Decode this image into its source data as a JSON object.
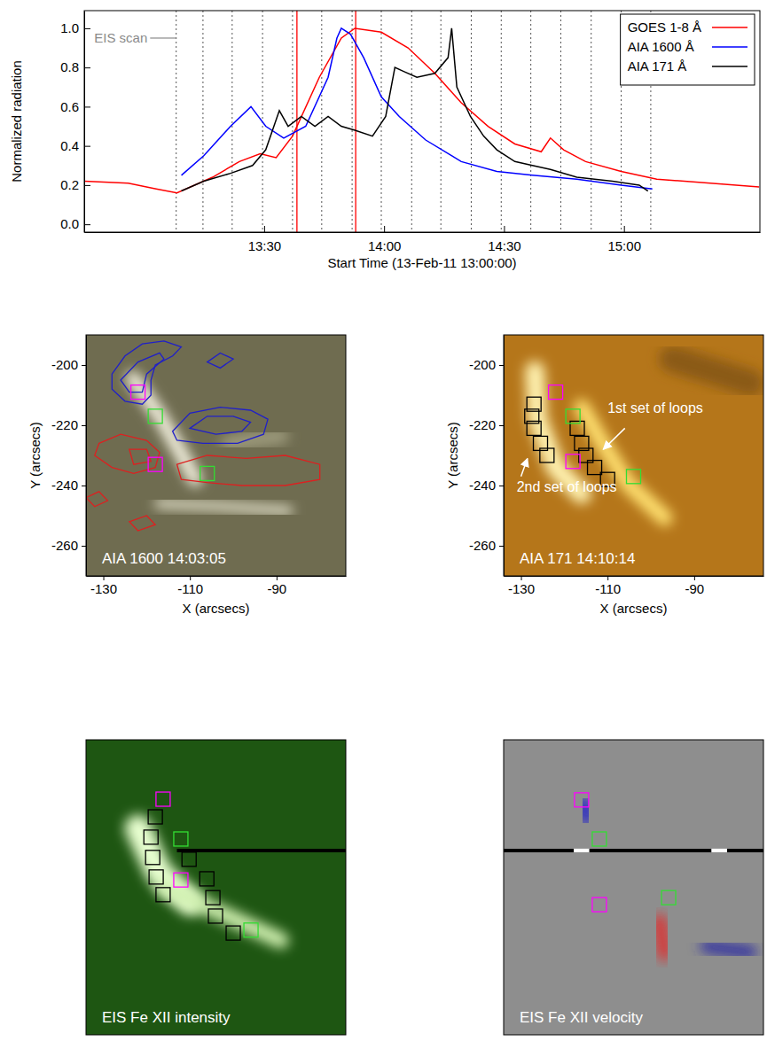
{
  "chart_data": [
    {
      "type": "line",
      "xlabel": "Start Time (13-Feb-11 13:00:00)",
      "ylabel": "Normalized radiation",
      "xlim": [
        765,
        934
      ],
      "ylim": [
        -0.04,
        1.09
      ],
      "xticks": [
        {
          "value": 810,
          "label": "13:30"
        },
        {
          "value": 840,
          "label": "14:00"
        },
        {
          "value": 870,
          "label": "14:30"
        },
        {
          "value": 900,
          "label": "15:00"
        }
      ],
      "yticks": [
        {
          "value": 0,
          "label": "0.0"
        },
        {
          "value": 0.2,
          "label": "0.2"
        },
        {
          "value": 0.4,
          "label": "0.4"
        },
        {
          "value": 0.6,
          "label": "0.6"
        },
        {
          "value": 0.8,
          "label": "0.8"
        },
        {
          "value": 1,
          "label": "1.0"
        }
      ],
      "legend": "upper right",
      "series": [
        {
          "name": "GOES 1-8 Å",
          "color": "#ff0000",
          "x": [
            765,
            776,
            783,
            788.2,
            797.1,
            803.8,
            809,
            813,
            817.1,
            823.8,
            829.3,
            832.7,
            839.3,
            846,
            852.7,
            859.3,
            866,
            872.7,
            879.3,
            881.6,
            884.9,
            890.4,
            899.3,
            908.2,
            921.6,
            933.8
          ],
          "values": [
            0.22,
            0.21,
            0.18,
            0.16,
            0.24,
            0.32,
            0.36,
            0.34,
            0.45,
            0.75,
            0.95,
            1.0,
            0.98,
            0.9,
            0.77,
            0.62,
            0.5,
            0.41,
            0.37,
            0.44,
            0.38,
            0.32,
            0.27,
            0.23,
            0.21,
            0.19
          ]
        },
        {
          "name": "AIA 1600 Å",
          "color": "#0000ff",
          "x": [
            789.3,
            794.9,
            801.6,
            806.7,
            810.4,
            814.9,
            820.4,
            826,
            828.2,
            829.3,
            831.6,
            834.9,
            839.3,
            843.8,
            850.4,
            859.3,
            868.2,
            877.1,
            888.2,
            899.3,
            907.1
          ],
          "values": [
            0.25,
            0.35,
            0.5,
            0.6,
            0.5,
            0.44,
            0.5,
            0.75,
            0.95,
            1.0,
            0.97,
            0.85,
            0.65,
            0.55,
            0.43,
            0.32,
            0.27,
            0.25,
            0.23,
            0.2,
            0.18
          ]
        },
        {
          "name": "AIA 171 Å",
          "color": "#000000",
          "x": [
            789.3,
            794.9,
            801.6,
            807.1,
            810.4,
            813.8,
            816,
            819.3,
            822.7,
            826,
            829.3,
            832.7,
            837.1,
            840.4,
            842.7,
            844.9,
            848.2,
            852.7,
            856,
            856.9,
            858.2,
            861.6,
            864.9,
            868.2,
            872.7,
            877.1,
            881.6,
            888.2,
            897.1,
            903.8,
            906
          ],
          "values": [
            0.17,
            0.22,
            0.26,
            0.3,
            0.38,
            0.58,
            0.5,
            0.55,
            0.5,
            0.55,
            0.5,
            0.48,
            0.45,
            0.55,
            0.8,
            0.78,
            0.75,
            0.77,
            0.85,
            1.0,
            0.7,
            0.55,
            0.45,
            0.38,
            0.32,
            0.3,
            0.28,
            0.24,
            0.22,
            0.2,
            0.17
          ]
        }
      ],
      "scan_times": [
        788,
        794.7,
        802,
        809.6,
        817.1,
        824.4,
        832,
        839.3,
        846.9,
        854.2,
        861.8,
        869.3,
        876.7,
        884.2,
        891.8,
        899.3,
        906.7
      ],
      "marked_times": {
        "color": "#ff0000",
        "values": [
          818.2,
          832.9
        ]
      },
      "annotations": [
        {
          "text": "EIS scan",
          "x": 767.5,
          "y": 0.95
        }
      ]
    },
    {
      "type": "image",
      "title": "AIA 1600 14:03:05",
      "xlabel": "X (arcsecs)",
      "ylabel": "Y (arcsecs)",
      "xlim": [
        -134,
        -74
      ],
      "ylim": [
        -270,
        -190
      ],
      "xticks": [
        -130,
        -110,
        -90
      ],
      "yticks": [
        -260,
        -240,
        -220,
        -200
      ],
      "contours": [
        {
          "color": "#2020c8",
          "points": [
            [
              -128,
              -203
            ],
            [
              -125,
              -197
            ],
            [
              -121,
              -193
            ],
            [
              -116,
              -192
            ],
            [
              -112,
              -194
            ],
            [
              -114,
              -197
            ],
            [
              -118,
              -200
            ],
            [
              -119,
              -205
            ],
            [
              -119,
              -210
            ],
            [
              -121,
              -213
            ],
            [
              -125,
              -212
            ],
            [
              -128,
              -208
            ]
          ]
        },
        {
          "color": "#2020c8",
          "points": [
            [
              -126,
              -205
            ],
            [
              -122,
              -199
            ],
            [
              -117,
              -196
            ],
            [
              -116,
              -198
            ],
            [
              -120,
              -203
            ],
            [
              -121,
              -209
            ],
            [
              -124,
              -209
            ]
          ]
        },
        {
          "color": "#2020c8",
          "points": [
            [
              -114,
              -222
            ],
            [
              -110,
              -216
            ],
            [
              -103,
              -214
            ],
            [
              -96,
              -215
            ],
            [
              -92,
              -218
            ],
            [
              -93,
              -223
            ],
            [
              -99,
              -226
            ],
            [
              -107,
              -226
            ],
            [
              -113,
              -225
            ]
          ]
        },
        {
          "color": "#2020c8",
          "points": [
            [
              -110,
              -221
            ],
            [
              -106,
              -217
            ],
            [
              -100,
              -217
            ],
            [
              -96,
              -219
            ],
            [
              -98,
              -222
            ],
            [
              -104,
              -223
            ]
          ]
        },
        {
          "color": "#2020c8",
          "points": [
            [
              -106,
              -199
            ],
            [
              -103,
              -196
            ],
            [
              -100,
              -198
            ],
            [
              -103,
              -201
            ]
          ]
        },
        {
          "color": "#dd2020",
          "points": [
            [
              -131,
              -226
            ],
            [
              -126,
              -223
            ],
            [
              -120,
              -225
            ],
            [
              -117,
              -229
            ],
            [
              -118,
              -234
            ],
            [
              -123,
              -236
            ],
            [
              -128,
              -234
            ],
            [
              -132,
              -230
            ]
          ]
        },
        {
          "color": "#dd2020",
          "points": [
            [
              -124,
              -228
            ],
            [
              -120,
              -228
            ],
            [
              -119,
              -232
            ],
            [
              -123,
              -233
            ]
          ]
        },
        {
          "color": "#dd2020",
          "points": [
            [
              -113,
              -233
            ],
            [
              -106,
              -230
            ],
            [
              -97,
              -231
            ],
            [
              -88,
              -230
            ],
            [
              -80,
              -233
            ],
            [
              -80,
              -238
            ],
            [
              -88,
              -240
            ],
            [
              -98,
              -240
            ],
            [
              -106,
              -239
            ],
            [
              -112,
              -238
            ]
          ]
        },
        {
          "color": "#dd2020",
          "points": [
            [
              -134,
              -244
            ],
            [
              -131,
              -242
            ],
            [
              -129,
              -245
            ],
            [
              -132,
              -247
            ]
          ]
        },
        {
          "color": "#dd2020",
          "points": [
            [
              -124,
              -252
            ],
            [
              -120,
              -250
            ],
            [
              -118,
              -253
            ],
            [
              -122,
              -255
            ]
          ]
        }
      ],
      "boxes": [
        {
          "color": "#ff00ff",
          "x": -122,
          "y": -209
        },
        {
          "color": "#33dd33",
          "x": -118,
          "y": -217
        },
        {
          "color": "#ff00ff",
          "x": -118,
          "y": -233
        },
        {
          "color": "#33dd33",
          "x": -106,
          "y": -236
        }
      ]
    },
    {
      "type": "image",
      "title": "AIA 171 14:10:14",
      "xlabel": "X (arcsecs)",
      "ylabel": "Y (arcsecs)",
      "xlim": [
        -134,
        -74
      ],
      "ylim": [
        -270,
        -190
      ],
      "xticks": [
        -130,
        -110,
        -90
      ],
      "yticks": [
        -260,
        -240,
        -220,
        -200
      ],
      "boxes": [
        {
          "color": "#000000",
          "x": -127,
          "y": -213
        },
        {
          "color": "#000000",
          "x": -127.5,
          "y": -217
        },
        {
          "color": "#000000",
          "x": -127,
          "y": -221
        },
        {
          "color": "#000000",
          "x": -125.5,
          "y": -226
        },
        {
          "color": "#000000",
          "x": -124,
          "y": -230
        },
        {
          "color": "#000000",
          "x": -117,
          "y": -221
        },
        {
          "color": "#000000",
          "x": -116,
          "y": -226
        },
        {
          "color": "#000000",
          "x": -115,
          "y": -230
        },
        {
          "color": "#000000",
          "x": -113,
          "y": -234
        },
        {
          "color": "#000000",
          "x": -110,
          "y": -238
        },
        {
          "color": "#ff00ff",
          "x": -122,
          "y": -209
        },
        {
          "color": "#33dd33",
          "x": -118,
          "y": -217
        },
        {
          "color": "#ff00ff",
          "x": -118,
          "y": -232
        },
        {
          "color": "#33dd33",
          "x": -104,
          "y": -237
        }
      ],
      "annotations": [
        {
          "text": "1st set of loops",
          "x": -110,
          "y": -216,
          "arrow": [
            [
              -106,
              -221
            ],
            [
              -111,
              -228
            ]
          ]
        },
        {
          "text": "2nd set of loops",
          "x": -131,
          "y": -242,
          "arrow": [
            [
              -130,
              -237
            ],
            [
              -128.5,
              -231
            ]
          ]
        }
      ]
    },
    {
      "type": "image",
      "title": "EIS Fe XII intensity",
      "xlim": [
        -134,
        -74
      ],
      "ylim": [
        -270,
        -190
      ],
      "tick_labels": false,
      "boxes": [
        {
          "color": "#000000",
          "x": -118,
          "y": -210.9
        },
        {
          "color": "#000000",
          "x": -119,
          "y": -216.4
        },
        {
          "color": "#000000",
          "x": -118.6,
          "y": -221.9
        },
        {
          "color": "#000000",
          "x": -117.8,
          "y": -227.2
        },
        {
          "color": "#000000",
          "x": -116.2,
          "y": -232
        },
        {
          "color": "#000000",
          "x": -110.2,
          "y": -222.4
        },
        {
          "color": "#000000",
          "x": -106.1,
          "y": -227.7
        },
        {
          "color": "#000000",
          "x": -104.7,
          "y": -232.8
        },
        {
          "color": "#000000",
          "x": -104.1,
          "y": -237.8
        },
        {
          "color": "#000000",
          "x": -100,
          "y": -242.4
        },
        {
          "color": "#ff00ff",
          "x": -116.2,
          "y": -206.1
        },
        {
          "color": "#33dd33",
          "x": -112.1,
          "y": -216.9
        },
        {
          "color": "#ff00ff",
          "x": -112.1,
          "y": -228
        },
        {
          "color": "#33dd33",
          "x": -95.9,
          "y": -241.6
        }
      ]
    },
    {
      "type": "image",
      "title": "EIS Fe XII velocity",
      "xlim": [
        -134,
        -74
      ],
      "ylim": [
        -270,
        -190
      ],
      "tick_labels": false,
      "boxes": [
        {
          "color": "#ff00ff",
          "x": -116,
          "y": -206.3
        },
        {
          "color": "#33dd33",
          "x": -111.9,
          "y": -216.9
        },
        {
          "color": "#ff00ff",
          "x": -111.9,
          "y": -234.7
        },
        {
          "color": "#33dd33",
          "x": -95.9,
          "y": -232.8
        }
      ]
    }
  ]
}
